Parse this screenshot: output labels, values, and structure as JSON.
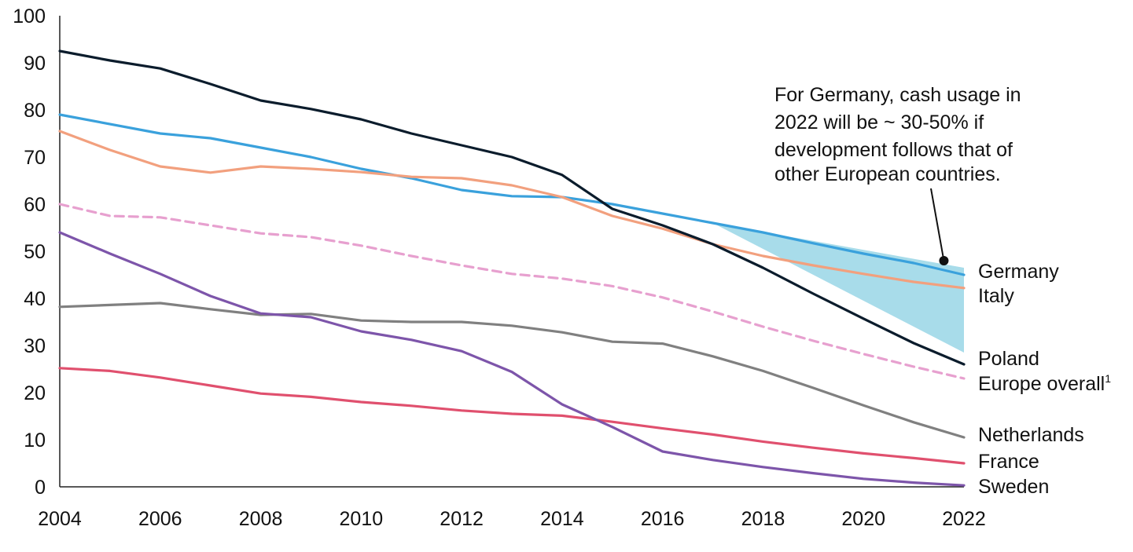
{
  "chart_data": {
    "type": "line",
    "title": "",
    "xlabel": "",
    "ylabel": "",
    "xlim": [
      2004,
      2022
    ],
    "ylim": [
      0,
      100
    ],
    "grid": false,
    "legend": "inline-right",
    "x_ticks": [
      "2004",
      "2006",
      "2008",
      "2010",
      "2012",
      "2014",
      "2016",
      "2018",
      "2020",
      "2022"
    ],
    "y_ticks": [
      "0",
      "10",
      "20",
      "30",
      "40",
      "50",
      "60",
      "70",
      "80",
      "90",
      "100"
    ],
    "series": [
      {
        "name": "Germany",
        "color": "#3aa1dc",
        "dashed": false,
        "x": [
          2004,
          2006,
          2007,
          2008,
          2009,
          2010,
          2011,
          2012,
          2013,
          2014,
          2015,
          2016,
          2017,
          2018,
          2019,
          2020,
          2021,
          2022
        ],
        "y": [
          79,
          75,
          74,
          72,
          70,
          67.5,
          65.5,
          63,
          61.7,
          61.5,
          60,
          58,
          56,
          54,
          51.7,
          49.5,
          47.5,
          45
        ]
      },
      {
        "name": "Italy",
        "color": "#f2a07e",
        "dashed": false,
        "x": [
          2004,
          2005,
          2006,
          2007,
          2008,
          2009,
          2010,
          2011,
          2012,
          2013,
          2014,
          2015,
          2016,
          2017,
          2018,
          2019,
          2020,
          2021,
          2022
        ],
        "y": [
          75.5,
          71.5,
          68,
          66.7,
          68,
          67.5,
          66.8,
          65.8,
          65.5,
          64,
          61.5,
          57.5,
          54.8,
          51.5,
          49,
          47,
          45.2,
          43.5,
          42.2
        ]
      },
      {
        "name": "Poland",
        "color": "#0b1c2c",
        "dashed": false,
        "x": [
          2004,
          2005,
          2006,
          2007,
          2008,
          2009,
          2010,
          2011,
          2012,
          2013,
          2014,
          2015,
          2016,
          2017,
          2018,
          2019,
          2020,
          2021,
          2022
        ],
        "y": [
          92.5,
          90.5,
          88.8,
          85.5,
          82,
          80.2,
          78,
          75,
          72.5,
          70,
          66.2,
          59,
          55.5,
          51.5,
          46.5,
          41,
          35.7,
          30.5,
          26
        ]
      },
      {
        "name": "Europe overall",
        "color": "#e7a0cf",
        "dashed": true,
        "x": [
          2004,
          2005,
          2006,
          2007,
          2008,
          2009,
          2010,
          2011,
          2012,
          2013,
          2014,
          2015,
          2016,
          2017,
          2018,
          2019,
          2020,
          2021,
          2022
        ],
        "y": [
          60,
          57.5,
          57.2,
          55.5,
          53.8,
          53,
          51.2,
          49,
          47,
          45.2,
          44.2,
          42.6,
          40.2,
          37.2,
          34,
          31,
          28.2,
          25.5,
          23
        ]
      },
      {
        "name": "Netherlands",
        "color": "#808080",
        "dashed": false,
        "x": [
          2004,
          2005,
          2006,
          2007,
          2008,
          2009,
          2010,
          2011,
          2012,
          2013,
          2014,
          2015,
          2016,
          2017,
          2018,
          2019,
          2020,
          2021,
          2022
        ],
        "y": [
          38.2,
          38.6,
          39,
          37.7,
          36.5,
          36.7,
          35.3,
          35,
          35,
          34.2,
          32.8,
          30.8,
          30.4,
          27.7,
          24.6,
          21,
          17.3,
          13.7,
          10.5
        ]
      },
      {
        "name": "France",
        "color": "#e0506e",
        "dashed": false,
        "x": [
          2004,
          2005,
          2006,
          2007,
          2008,
          2009,
          2010,
          2011,
          2012,
          2013,
          2014,
          2015,
          2016,
          2017,
          2018,
          2019,
          2020,
          2021,
          2022
        ],
        "y": [
          25.2,
          24.6,
          23.2,
          21.5,
          19.8,
          19.1,
          18,
          17.2,
          16.2,
          15.5,
          15.1,
          13.8,
          12.4,
          11.1,
          9.6,
          8.3,
          7.1,
          6.1,
          5
        ]
      },
      {
        "name": "Sweden",
        "color": "#7d55aa",
        "dashed": false,
        "x": [
          2004,
          2005,
          2006,
          2007,
          2008,
          2009,
          2010,
          2011,
          2012,
          2013,
          2014,
          2015,
          2016,
          2017,
          2018,
          2019,
          2020,
          2021,
          2022
        ],
        "y": [
          54,
          49.5,
          45.2,
          40.5,
          36.8,
          36,
          33,
          31.2,
          28.8,
          24.4,
          17.5,
          12.7,
          7.5,
          5.7,
          4.2,
          2.9,
          1.7,
          0.9,
          0.3
        ]
      }
    ],
    "range_band": {
      "color": "#a8dcea",
      "x": [
        2017,
        2022
      ],
      "upper": [
        56,
        46.5
      ],
      "lower": [
        56,
        28.5
      ]
    },
    "annotation": {
      "lines": [
        "For Germany, cash usage in",
        "2022 will be ~ 30-50% if",
        "development follows that of",
        "other European countries."
      ],
      "point": [
        2021.6,
        48
      ]
    },
    "footnote_marker": "1"
  }
}
